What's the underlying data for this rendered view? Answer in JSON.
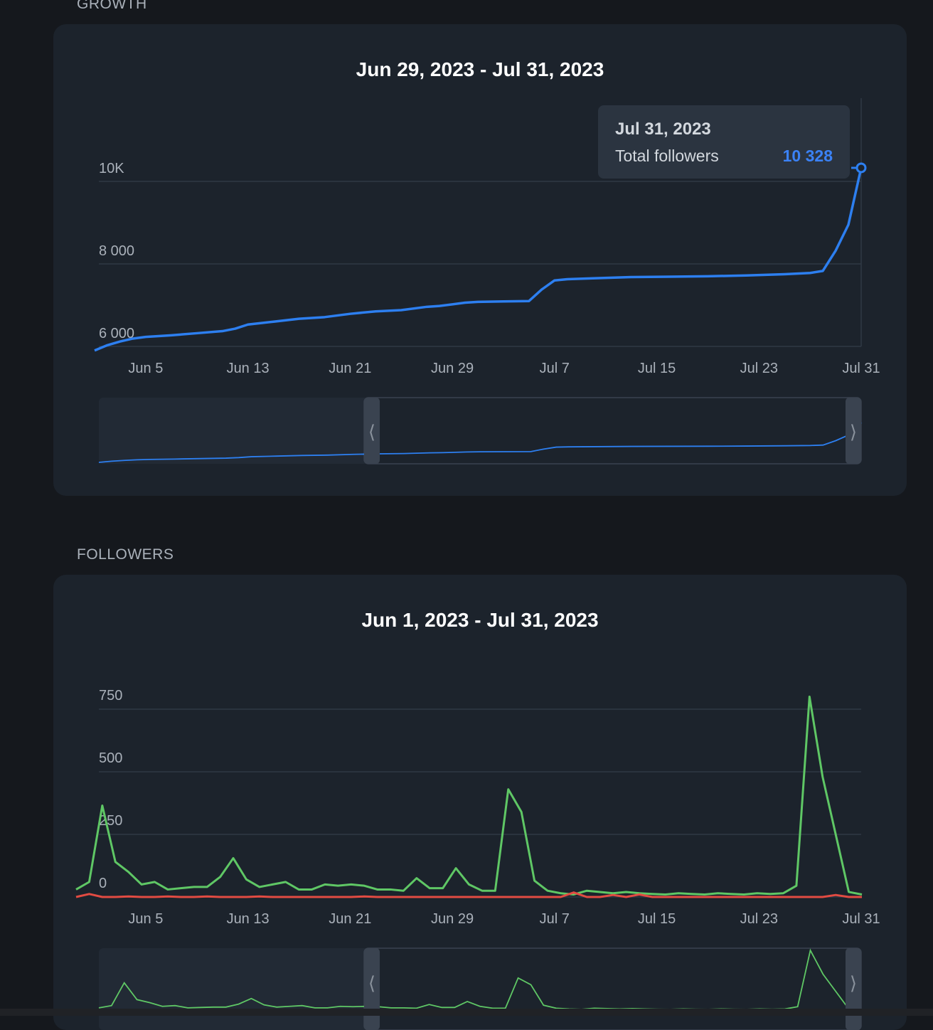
{
  "sections": {
    "growth": {
      "label": "GROWTH",
      "title": "Jun 29, 2023 - Jul 31, 2023",
      "y_ticks": [
        "10K",
        "8 000",
        "6 000"
      ],
      "x_ticks": [
        "Jun 5",
        "Jun 13",
        "Jun 21",
        "Jun 29",
        "Jul 7",
        "Jul 15",
        "Jul 23",
        "Jul 31"
      ],
      "tooltip": {
        "date": "Jul 31, 2023",
        "label": "Total followers",
        "value": "10 328"
      }
    },
    "followers": {
      "label": "FOLLOWERS",
      "title": "Jun 1, 2023 - Jul 31, 2023",
      "y_ticks": [
        "750",
        "500",
        "250",
        "0"
      ],
      "x_ticks": [
        "Jun 5",
        "Jun 13",
        "Jun 21",
        "Jun 29",
        "Jul 7",
        "Jul 15",
        "Jul 23",
        "Jul 31"
      ]
    }
  },
  "colors": {
    "growth_line": "#2d7ff0",
    "followers_gained": "#5fc765",
    "followers_lost": "#e24b42",
    "grid": "#2f3945",
    "window": "#3a4350"
  },
  "chart_data": [
    {
      "type": "line",
      "title": "Jun 29, 2023 - Jul 31, 2023",
      "x_range": [
        "Jun 1, 2023",
        "Jul 31, 2023"
      ],
      "ylim": [
        5900,
        10500
      ],
      "series": [
        {
          "name": "Total followers",
          "x": [
            "Jun 1",
            "Jun 2",
            "Jun 3",
            "Jun 4",
            "Jun 5",
            "Jun 7",
            "Jun 9",
            "Jun 11",
            "Jun 12",
            "Jun 13",
            "Jun 15",
            "Jun 17",
            "Jun 19",
            "Jun 21",
            "Jun 23",
            "Jun 25",
            "Jun 27",
            "Jun 28",
            "Jun 30",
            "Jul 1",
            "Jul 3",
            "Jul 5",
            "Jul 6",
            "Jul 7",
            "Jul 8",
            "Jul 10",
            "Jul 13",
            "Jul 16",
            "Jul 19",
            "Jul 22",
            "Jul 25",
            "Jul 27",
            "Jul 28",
            "Jul 29",
            "Jul 30",
            "Jul 31"
          ],
          "values": [
            5900,
            6030,
            6120,
            6190,
            6230,
            6270,
            6320,
            6370,
            6430,
            6530,
            6600,
            6670,
            6710,
            6790,
            6850,
            6880,
            6960,
            6980,
            7060,
            7080,
            7090,
            7100,
            7380,
            7600,
            7630,
            7650,
            7680,
            7690,
            7700,
            7720,
            7750,
            7780,
            7830,
            8320,
            8950,
            10328
          ]
        }
      ]
    },
    {
      "type": "line",
      "title": "Jun 1, 2023 - Jul 31, 2023",
      "x_range": [
        "Jun 1, 2023",
        "Jul 31, 2023"
      ],
      "ylim": [
        -50,
        850
      ],
      "series": [
        {
          "values": [
            30,
            60,
            365,
            140,
            100,
            50,
            60,
            30,
            35,
            40,
            40,
            80,
            155,
            70,
            40,
            50,
            60,
            30,
            30,
            50,
            45,
            50,
            45,
            30,
            30,
            25,
            75,
            35,
            35,
            115,
            50,
            25,
            25,
            430,
            340,
            65,
            25,
            15,
            10,
            25,
            20,
            15,
            20,
            15,
            12,
            10,
            15,
            12,
            10,
            15,
            12,
            10,
            15,
            12,
            15,
            45,
            800,
            480,
            250,
            20,
            10
          ]
        },
        {
          "values": [
            0,
            12,
            0,
            0,
            2,
            0,
            0,
            2,
            0,
            0,
            2,
            0,
            0,
            0,
            2,
            0,
            0,
            0,
            0,
            0,
            0,
            0,
            2,
            0,
            0,
            0,
            0,
            0,
            0,
            0,
            0,
            0,
            0,
            0,
            0,
            0,
            0,
            0,
            18,
            0,
            0,
            8,
            0,
            10,
            0,
            0,
            0,
            0,
            0,
            0,
            0,
            0,
            0,
            0,
            0,
            0,
            0,
            0,
            8,
            0,
            0
          ]
        }
      ]
    }
  ]
}
